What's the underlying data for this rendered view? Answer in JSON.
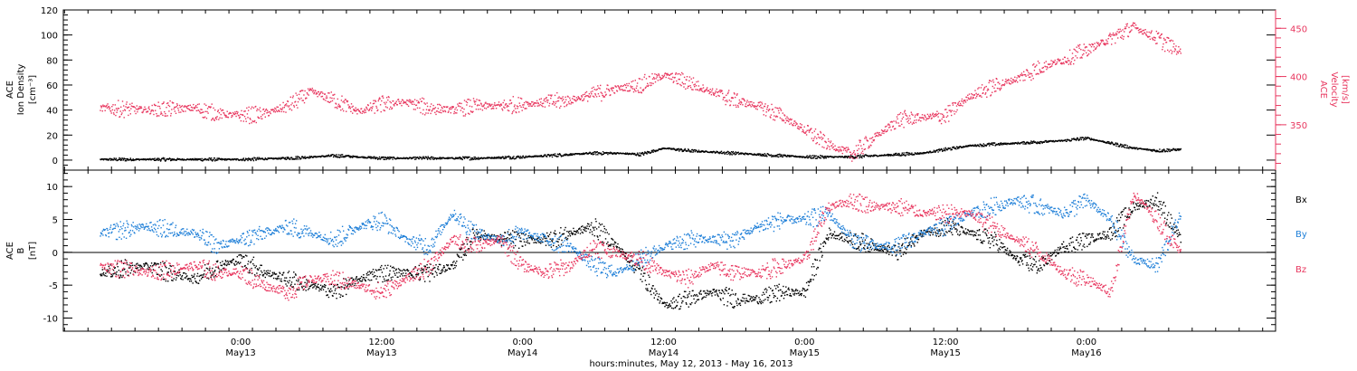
{
  "colors": {
    "black": "#000000",
    "pink": "#e8375f",
    "blue": "#1e7fd8"
  },
  "chart_data": [
    {
      "type": "scatter",
      "panel": "top",
      "ylabel_lines": [
        "ACE",
        "Ion Density",
        "[cm⁻³]"
      ],
      "y2label_lines": [
        "ACE",
        "Velocity",
        "[km/s]"
      ],
      "ylim": [
        -8,
        120
      ],
      "yticks": [
        "0",
        "20",
        "40",
        "60",
        "80",
        "100",
        "120"
      ],
      "y2lim": [
        303,
        469
      ],
      "y2ticks": [
        "350",
        "400",
        "450"
      ],
      "grid": false,
      "series": [
        {
          "color": "black",
          "axis": "left",
          "x_hours": [
            -12,
            -8,
            -4,
            0,
            4,
            8,
            12,
            16,
            20,
            24,
            28,
            30,
            32,
            34,
            36,
            38,
            40,
            42,
            44,
            48,
            52,
            56,
            58,
            60,
            62,
            64,
            66,
            68,
            70,
            72,
            74,
            76,
            78,
            80
          ],
          "values": [
            1,
            1,
            1,
            1,
            2,
            4,
            2,
            2,
            2,
            3,
            5,
            6,
            6,
            5,
            10,
            8,
            7,
            6,
            5,
            3,
            3,
            5,
            6,
            9,
            12,
            13,
            14,
            15,
            16,
            18,
            14,
            10,
            8,
            9
          ]
        },
        {
          "color": "pink",
          "axis": "right",
          "x_hours": [
            -12,
            -8,
            -4,
            -2,
            0,
            2,
            4,
            6,
            8,
            10,
            12,
            14,
            16,
            18,
            20,
            22,
            24,
            26,
            28,
            30,
            32,
            34,
            36,
            38,
            40,
            42,
            44,
            46,
            48,
            50,
            52,
            54,
            56,
            58,
            60,
            62,
            64,
            66,
            68,
            70,
            72,
            74,
            76,
            78,
            80
          ],
          "values": [
            368,
            366,
            368,
            362,
            360,
            362,
            370,
            385,
            376,
            364,
            372,
            374,
            368,
            366,
            370,
            370,
            372,
            374,
            376,
            382,
            388,
            392,
            402,
            395,
            385,
            376,
            370,
            360,
            345,
            330,
            320,
            338,
            356,
            358,
            360,
            380,
            390,
            398,
            410,
            418,
            428,
            440,
            452,
            440,
            426
          ]
        }
      ]
    },
    {
      "type": "scatter",
      "panel": "bottom",
      "ylabel_lines": [
        "ACE",
        "B",
        "[nT]"
      ],
      "ylim": [
        -12,
        12.5
      ],
      "yticks": [
        "-10",
        "-5",
        "0",
        "5",
        "10"
      ],
      "grid": false,
      "legend": [
        "Bx",
        "By",
        "Bz"
      ],
      "legend_placement": "right",
      "series": [
        {
          "name": "Bx",
          "color": "black",
          "x_hours": [
            -12,
            -8,
            -4,
            -2,
            0,
            2,
            4,
            6,
            8,
            10,
            12,
            14,
            16,
            18,
            20,
            22,
            24,
            26,
            28,
            30,
            32,
            34,
            36,
            38,
            40,
            42,
            44,
            46,
            48,
            50,
            52,
            54,
            56,
            58,
            60,
            62,
            64,
            66,
            68,
            70,
            72,
            74,
            76,
            78,
            80
          ],
          "values": [
            -3,
            -2,
            -4,
            -2,
            -1,
            -3,
            -4,
            -5,
            -6,
            -4,
            -3,
            -3,
            -3,
            -2,
            3,
            2,
            2,
            2,
            3,
            4,
            1,
            -3,
            -8,
            -7,
            -6,
            -7,
            -7,
            -6,
            -6,
            3,
            2,
            1,
            0,
            3,
            4,
            3,
            2,
            -1,
            -2,
            1,
            2,
            3,
            7,
            8,
            2
          ]
        },
        {
          "name": "By",
          "color": "blue",
          "x_hours": [
            -12,
            -8,
            -4,
            -2,
            0,
            2,
            4,
            6,
            8,
            10,
            12,
            14,
            16,
            18,
            20,
            22,
            24,
            26,
            28,
            30,
            32,
            34,
            36,
            38,
            40,
            42,
            44,
            46,
            48,
            50,
            52,
            54,
            56,
            58,
            60,
            62,
            64,
            66,
            68,
            70,
            72,
            74,
            76,
            78,
            80
          ],
          "values": [
            3,
            4,
            3,
            1,
            2,
            3,
            4,
            3,
            2,
            4,
            5,
            2,
            1,
            6,
            3,
            2,
            3,
            2,
            1,
            -2,
            -3,
            -1,
            1,
            2,
            2,
            2,
            4,
            5,
            5,
            6,
            2,
            1,
            1,
            3,
            4,
            6,
            7,
            8,
            7,
            6,
            8,
            5,
            -1,
            -2,
            6
          ]
        },
        {
          "name": "Bz",
          "color": "pink",
          "x_hours": [
            -12,
            -8,
            -4,
            -2,
            0,
            2,
            4,
            6,
            8,
            10,
            12,
            14,
            16,
            18,
            20,
            22,
            24,
            26,
            28,
            30,
            32,
            34,
            36,
            38,
            40,
            42,
            44,
            46,
            48,
            50,
            52,
            54,
            56,
            58,
            60,
            62,
            64,
            66,
            68,
            70,
            72,
            74,
            76,
            78,
            80
          ],
          "values": [
            -2,
            -3,
            -2,
            -3,
            -3,
            -5,
            -6,
            -4,
            -4,
            -5,
            -6,
            -4,
            -2,
            2,
            1,
            2,
            -2,
            -3,
            -2,
            1,
            0,
            -1,
            -3,
            -4,
            -2,
            -3,
            -3,
            -2,
            -1,
            7,
            8,
            7,
            7,
            6,
            6,
            6,
            4,
            2,
            0,
            -3,
            -4,
            -6,
            9,
            5,
            0
          ]
        }
      ]
    }
  ],
  "x_axis": {
    "tick_hours": [
      0,
      12,
      24,
      36,
      48,
      60,
      72
    ],
    "tick_time_labels": [
      "0:00",
      "12:00",
      "0:00",
      "12:00",
      "0:00",
      "12:00",
      "0:00"
    ],
    "tick_date_labels": [
      "May13",
      "May13",
      "May14",
      "May14",
      "May15",
      "May15",
      "May16"
    ],
    "title": "hours:minutes, May 12, 2013 - May 16, 2013"
  }
}
